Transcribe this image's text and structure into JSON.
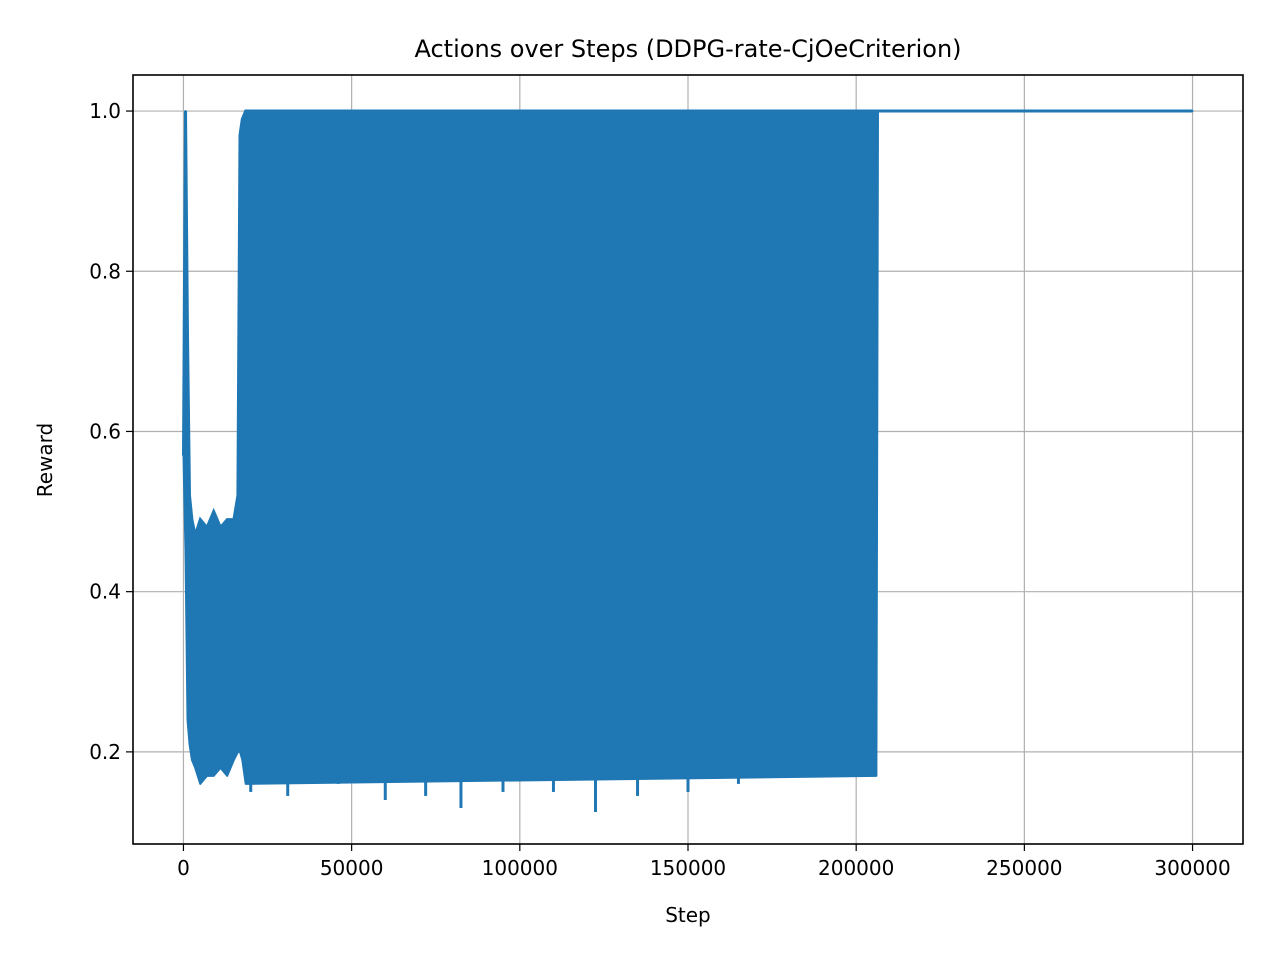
{
  "chart_data": {
    "type": "line",
    "title": "Actions over Steps (DDPG-rate-CjOeCriterion)",
    "xlabel": "Step",
    "ylabel": "Reward",
    "xlim": [
      -15000,
      315000
    ],
    "ylim": [
      0.085,
      1.045
    ],
    "xticks": [
      0,
      50000,
      100000,
      150000,
      200000,
      250000,
      300000
    ],
    "yticks": [
      0.2,
      0.4,
      0.6,
      0.8,
      1.0
    ],
    "ytick_labels": [
      "0.2",
      "0.4",
      "0.6",
      "0.8",
      "1.0"
    ],
    "grid": true,
    "color": "#1f77b4",
    "series": [
      {
        "x": [
          0,
          600,
          1200,
          1800,
          2500,
          3500,
          5000,
          7000,
          9000,
          11000,
          13000,
          15000,
          16200,
          16800,
          17500,
          18500,
          206000,
          206500,
          300000
        ],
        "y": [
          0.57,
          1.0,
          0.72,
          0.52,
          0.49,
          0.47,
          0.49,
          0.48,
          0.5,
          0.48,
          0.49,
          0.49,
          0.52,
          0.97,
          0.99,
          1.0,
          1.0,
          1.0,
          1.0
        ],
        "y_min": [
          0.57,
          0.45,
          0.24,
          0.21,
          0.19,
          0.18,
          0.16,
          0.17,
          0.17,
          0.18,
          0.17,
          0.19,
          0.2,
          0.2,
          0.19,
          0.16,
          0.17,
          1.0,
          1.0
        ]
      }
    ],
    "annotations_minima": [
      {
        "x": 20000,
        "y": 0.15
      },
      {
        "x": 31000,
        "y": 0.145
      },
      {
        "x": 46000,
        "y": 0.16
      },
      {
        "x": 60000,
        "y": 0.14
      },
      {
        "x": 72000,
        "y": 0.145
      },
      {
        "x": 82500,
        "y": 0.13
      },
      {
        "x": 95000,
        "y": 0.15
      },
      {
        "x": 110000,
        "y": 0.15
      },
      {
        "x": 122500,
        "y": 0.125
      },
      {
        "x": 135000,
        "y": 0.145
      },
      {
        "x": 150000,
        "y": 0.15
      },
      {
        "x": 165000,
        "y": 0.16
      },
      {
        "x": 180000,
        "y": 0.18
      },
      {
        "x": 193000,
        "y": 0.18
      },
      {
        "x": 205500,
        "y": 0.17
      }
    ]
  }
}
